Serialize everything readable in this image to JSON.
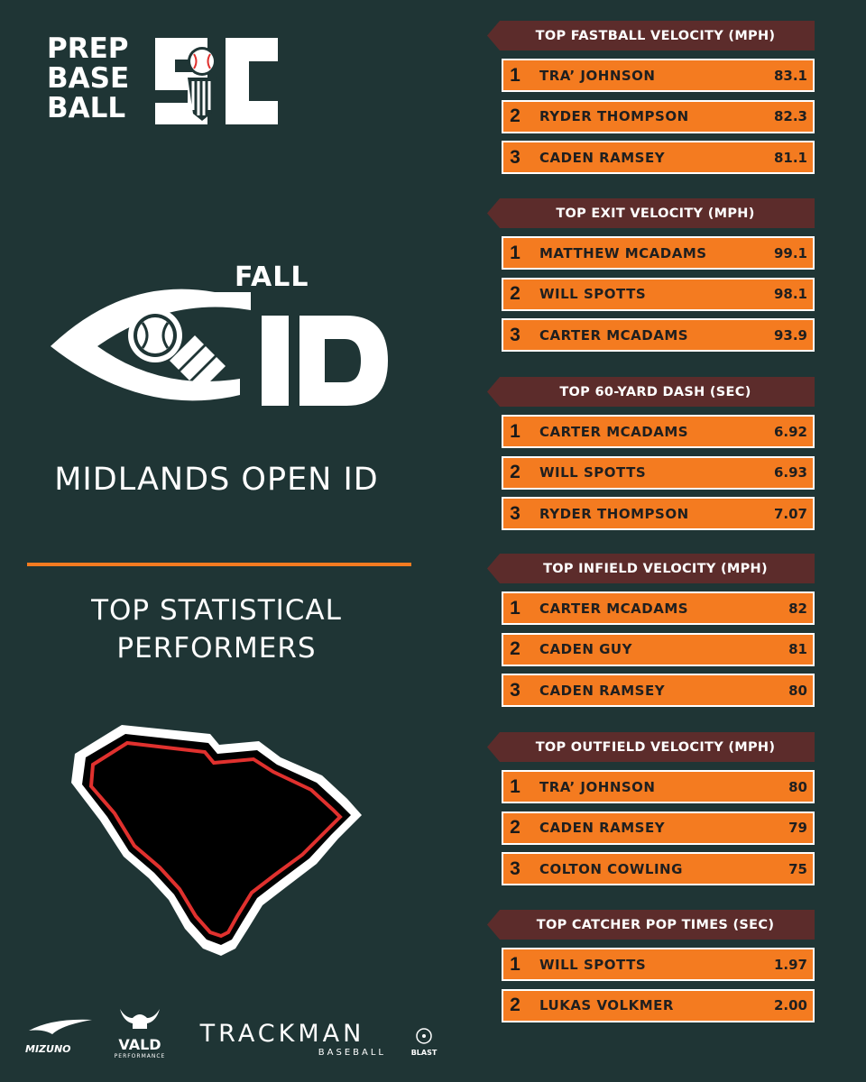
{
  "logo": {
    "lines": [
      "PREP",
      "BASE",
      "BALL"
    ],
    "mark": "SC"
  },
  "fall_id": {
    "fall": "FALL",
    "id": "ID"
  },
  "event_title": "MIDLANDS OPEN ID",
  "subtitle": [
    "TOP STATISTICAL",
    "PERFORMERS"
  ],
  "colors": {
    "background": "#1f3535",
    "accent": "#f47b20",
    "header": "#5c2c2b",
    "state_outline": "#e0312e"
  },
  "categories": [
    {
      "title": "TOP FASTBALL VELOCITY (MPH)",
      "rows": [
        {
          "rank": "1",
          "name": "TRA’ JOHNSON",
          "value": "83.1"
        },
        {
          "rank": "2",
          "name": "RYDER THOMPSON",
          "value": "82.3"
        },
        {
          "rank": "3",
          "name": "CADEN RAMSEY",
          "value": "81.1"
        }
      ]
    },
    {
      "title": "TOP EXIT VELOCITY (MPH)",
      "rows": [
        {
          "rank": "1",
          "name": "MATTHEW MCADAMS",
          "value": "99.1"
        },
        {
          "rank": "2",
          "name": "WILL SPOTTS",
          "value": "98.1"
        },
        {
          "rank": "3",
          "name": "CARTER MCADAMS",
          "value": "93.9"
        }
      ]
    },
    {
      "title": "TOP 60-YARD DASH (SEC)",
      "rows": [
        {
          "rank": "1",
          "name": "CARTER MCADAMS",
          "value": "6.92"
        },
        {
          "rank": "2",
          "name": "WILL SPOTTS",
          "value": "6.93"
        },
        {
          "rank": "3",
          "name": "RYDER THOMPSON",
          "value": "7.07"
        }
      ]
    },
    {
      "title": "TOP INFIELD VELOCITY (MPH)",
      "rows": [
        {
          "rank": "1",
          "name": "CARTER MCADAMS",
          "value": "82"
        },
        {
          "rank": "2",
          "name": "CADEN GUY",
          "value": "81"
        },
        {
          "rank": "3",
          "name": "CADEN RAMSEY",
          "value": "80"
        }
      ]
    },
    {
      "title": "TOP OUTFIELD VELOCITY (MPH)",
      "rows": [
        {
          "rank": "1",
          "name": "TRA’ JOHNSON",
          "value": "80"
        },
        {
          "rank": "2",
          "name": "CADEN RAMSEY",
          "value": "79"
        },
        {
          "rank": "3",
          "name": "COLTON COWLING",
          "value": "75"
        }
      ]
    },
    {
      "title": "TOP CATCHER POP TIMES (SEC)",
      "rows": [
        {
          "rank": "1",
          "name": "WILL SPOTTS",
          "value": "1.97"
        },
        {
          "rank": "2",
          "name": "LUKAS VOLKMER",
          "value": "2.00"
        }
      ]
    }
  ],
  "sponsors": {
    "mizuno": "MIZUNO",
    "vald": "VALD",
    "vald_sub": "PERFORMANCE",
    "trackman": "TRACKMAN",
    "trackman_sub": "BASEBALL",
    "blast": "BLAST"
  }
}
